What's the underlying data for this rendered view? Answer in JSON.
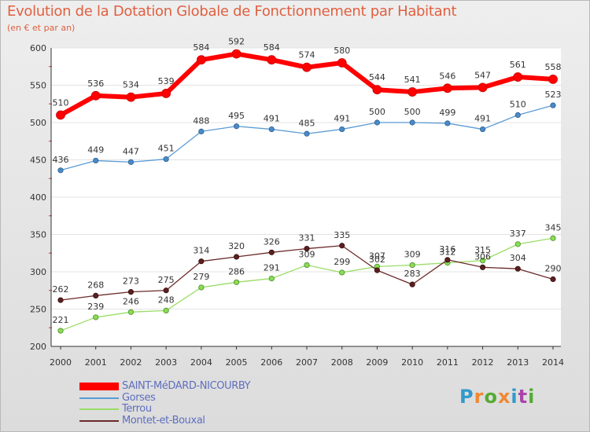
{
  "title": "Evolution de la Dotation Globale de Fonctionnement par Habitant",
  "subtitle": "(en € et par an)",
  "chart_data": {
    "type": "line",
    "title": "Evolution de la Dotation Globale de Fonctionnement par Habitant",
    "subtitle": "(en € et par an)",
    "x": [
      "2000",
      "2001",
      "2002",
      "2003",
      "2004",
      "2005",
      "2006",
      "2007",
      "2008",
      "2009",
      "2010",
      "2011",
      "2012",
      "2013",
      "2014"
    ],
    "ylim": [
      200,
      600
    ],
    "yticks": [
      200,
      250,
      300,
      350,
      400,
      450,
      500,
      550,
      600
    ],
    "grid": "horizontal",
    "legend_position": "bottom-left",
    "series": [
      {
        "name": "SAINT-MéDARD-NICOURBY",
        "color": "#ff0000",
        "values": [
          510,
          536,
          534,
          539,
          584,
          592,
          584,
          574,
          580,
          544,
          541,
          546,
          547,
          561,
          558
        ]
      },
      {
        "name": "Gorses",
        "color": "#5b9bd5",
        "values": [
          436,
          449,
          447,
          451,
          488,
          495,
          491,
          485,
          491,
          500,
          500,
          499,
          491,
          510,
          523
        ]
      },
      {
        "name": "Terrou",
        "color": "#99dd66",
        "values": [
          221,
          239,
          246,
          248,
          279,
          286,
          291,
          309,
          299,
          307,
          309,
          312,
          315,
          337,
          345
        ]
      },
      {
        "name": "Montet-et-Bouxal",
        "color": "#6b2a2a",
        "values": [
          262,
          268,
          273,
          275,
          314,
          320,
          326,
          331,
          335,
          302,
          283,
          316,
          306,
          304,
          290
        ]
      }
    ]
  },
  "logo": {
    "text": "Proxiti",
    "colors": [
      "#3399cc",
      "#ee8833",
      "#55aa33",
      "#ee8833",
      "#3399cc",
      "#aa44aa",
      "#55aa33"
    ]
  }
}
